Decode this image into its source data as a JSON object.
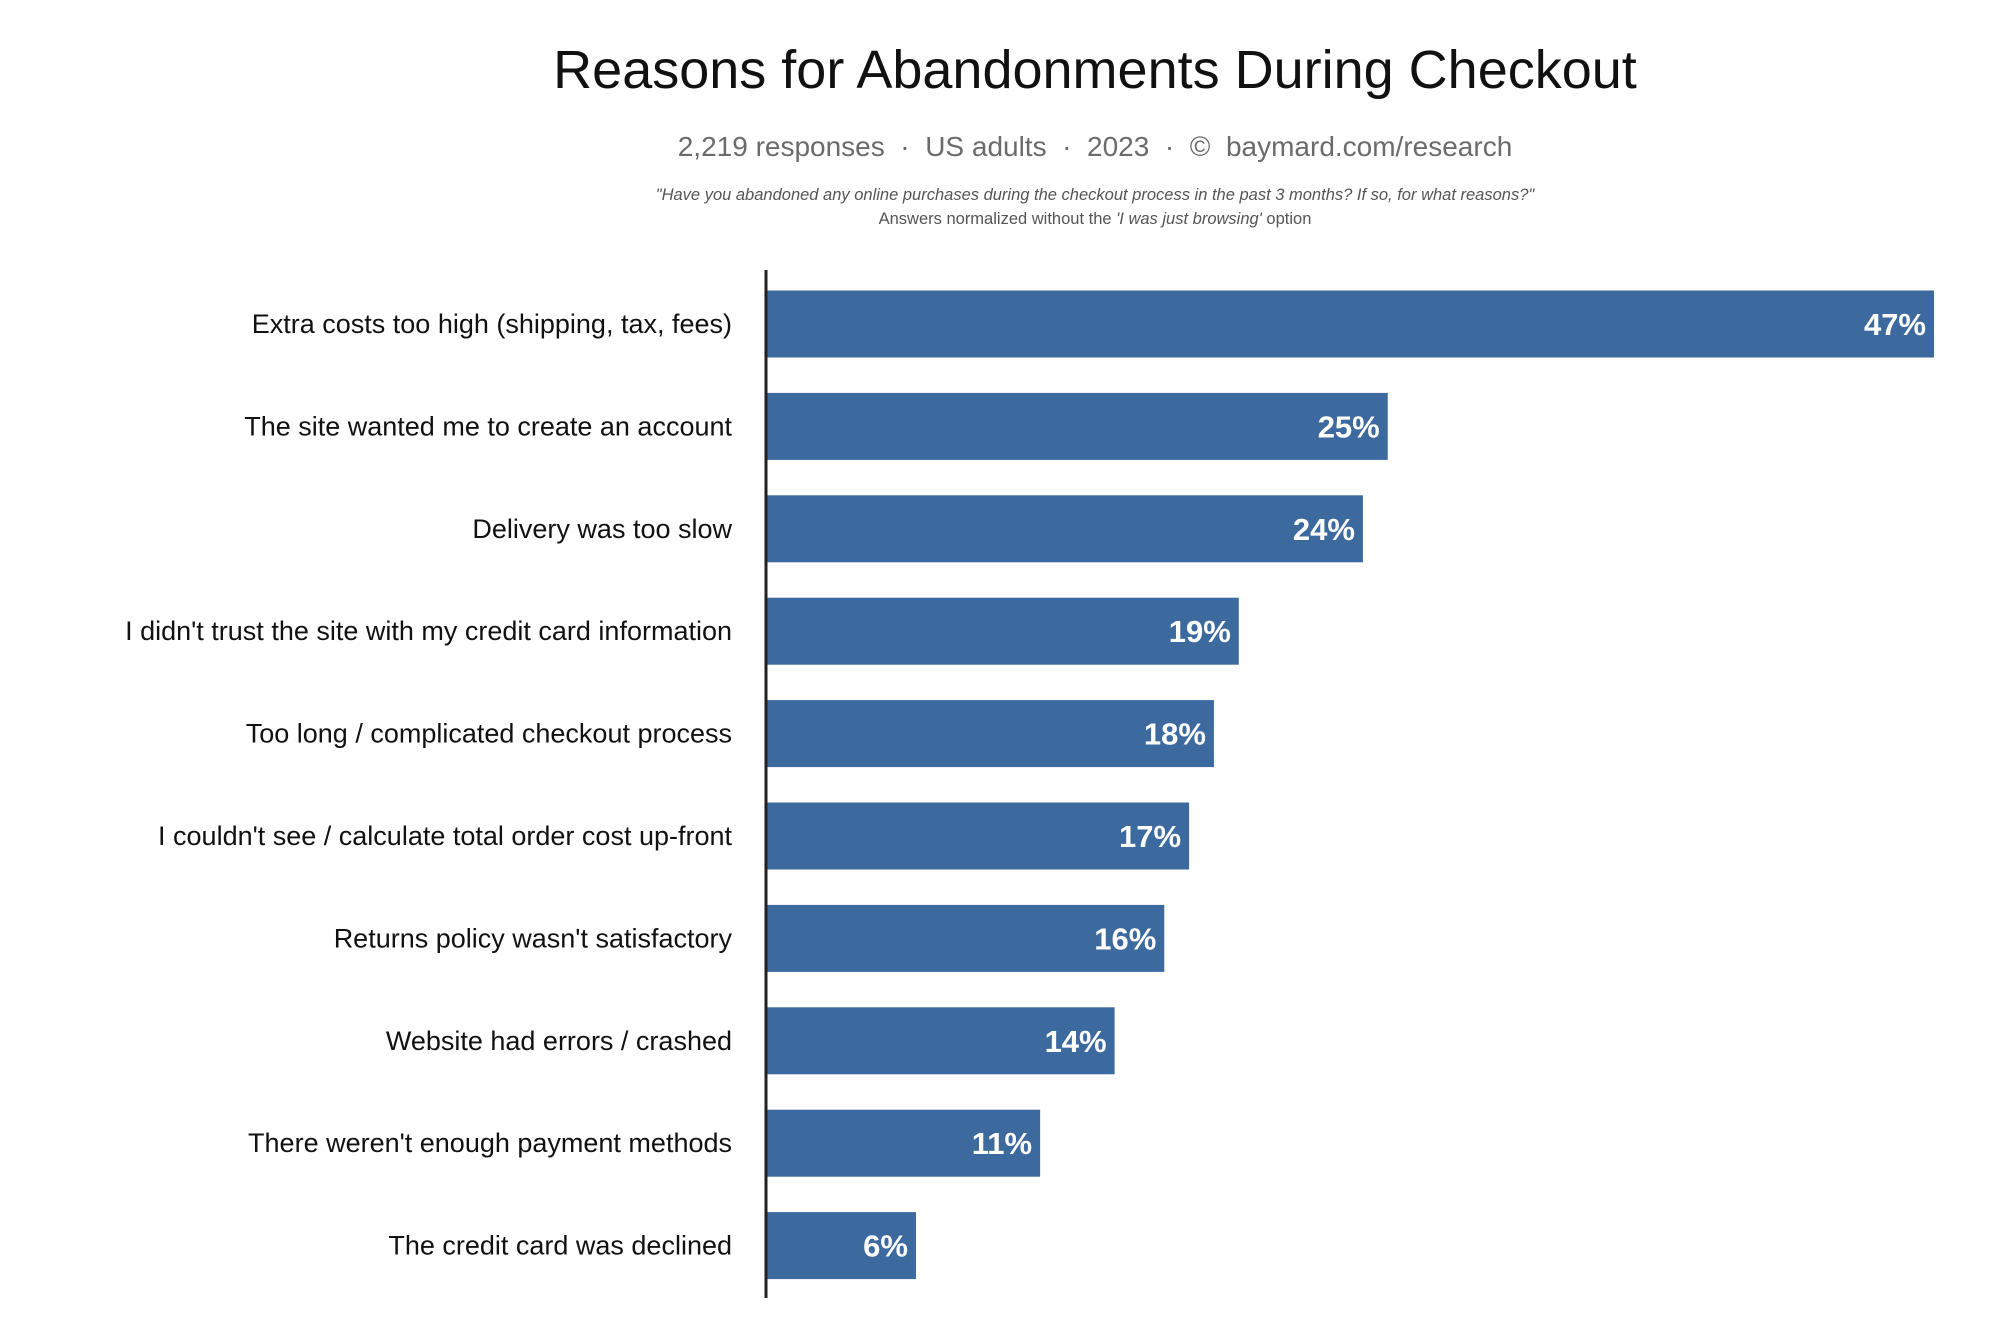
{
  "header": {
    "title": "Reasons for Abandonments During Checkout",
    "subtitle": "2,219 responses  ·  US adults  ·  2023  ·  ©  baymard.com/research",
    "question": "\"Have you abandoned any online purchases during the checkout process in the past 3 months? If so, for what reasons?\"",
    "note_before": "Answers normalized without the ",
    "note_italic": "'I was just browsing'",
    "note_after": " option"
  },
  "colors": {
    "bar": "#3d6a9e",
    "axis": "#222222",
    "value_text": "#ffffff"
  },
  "chart_data": {
    "type": "bar",
    "orientation": "horizontal",
    "title": "Reasons for Abandonments During Checkout",
    "xlabel": "",
    "ylabel": "",
    "grid": false,
    "legend": "none",
    "categories": [
      "Extra costs too high (shipping, tax, fees)",
      "The site wanted me to create an account",
      "Delivery was too slow",
      "I didn't trust the site with my credit card information",
      "Too long / complicated checkout process",
      "I couldn't see / calculate total order cost up-front",
      "Returns policy wasn't satisfactory",
      "Website had errors / crashed",
      "There weren't enough payment methods",
      "The credit card was declined"
    ],
    "values": [
      47,
      25,
      24,
      19,
      18,
      17,
      16,
      14,
      11,
      6
    ],
    "value_labels": [
      "47%",
      "25%",
      "24%",
      "19%",
      "18%",
      "17%",
      "16%",
      "14%",
      "11%",
      "6%"
    ],
    "unit": "%",
    "xlim": [
      0,
      47
    ]
  }
}
